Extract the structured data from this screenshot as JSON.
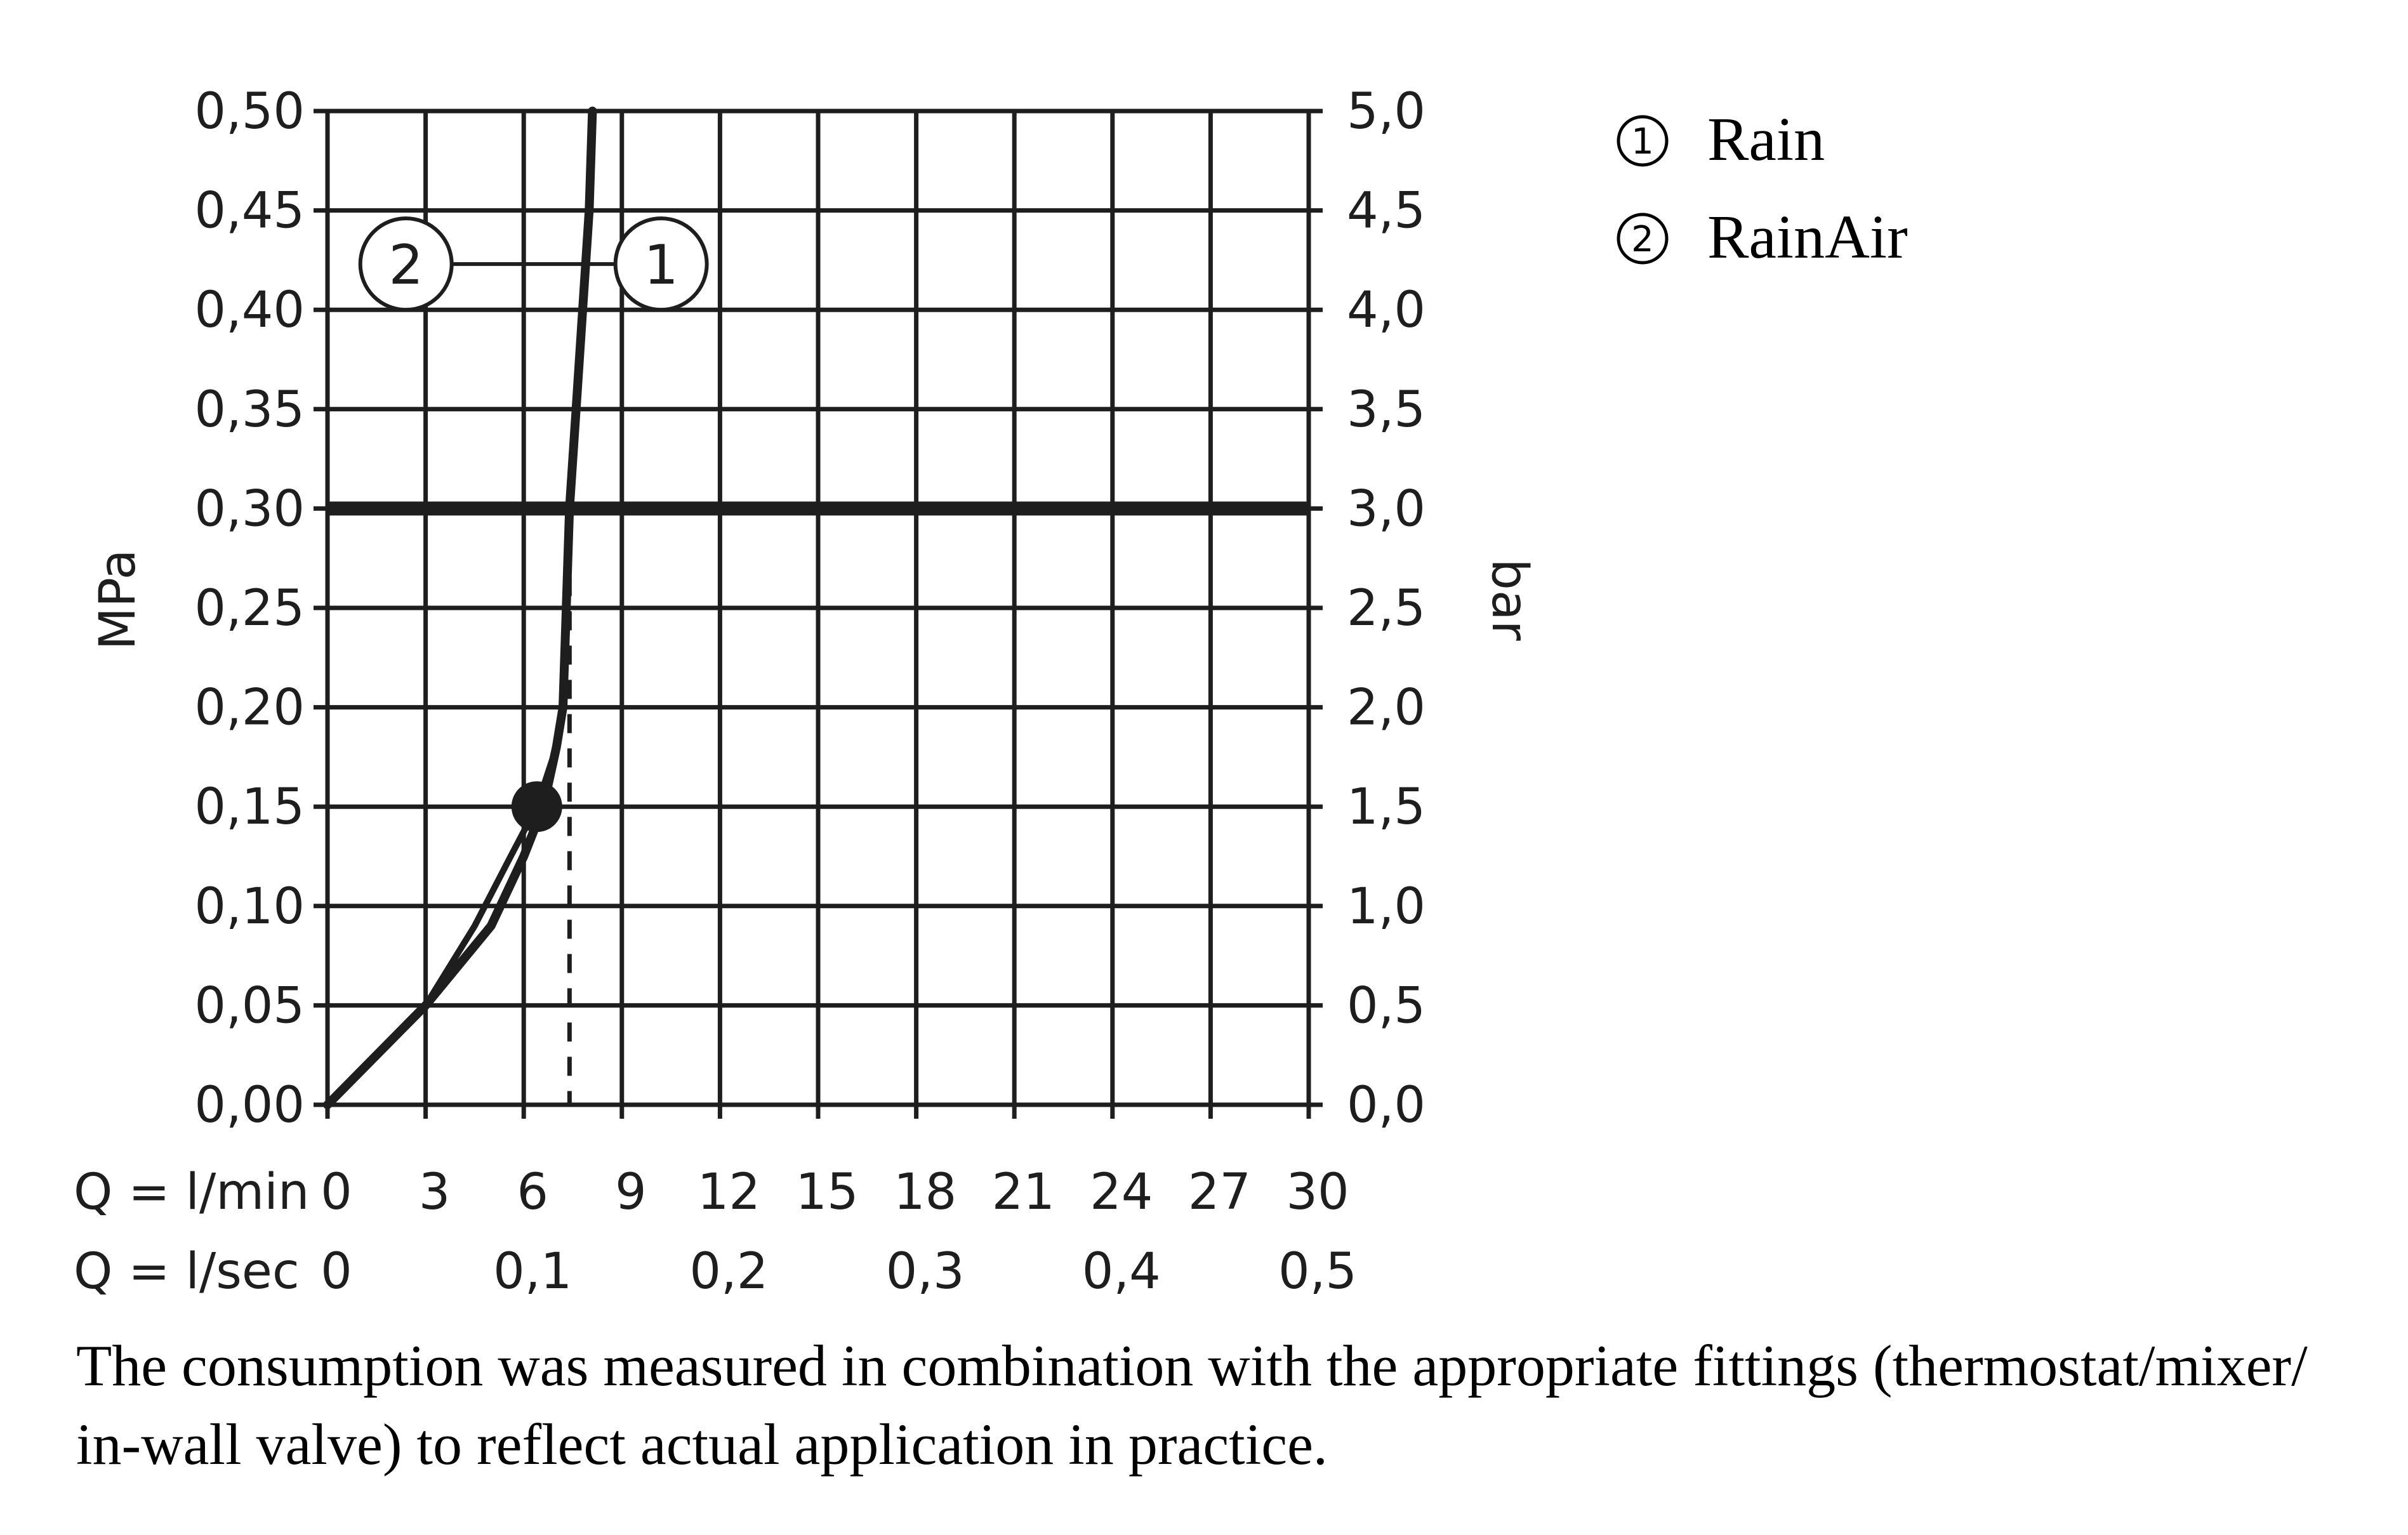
{
  "chart_data": {
    "type": "line",
    "title": "",
    "ylabel_left": "MPa",
    "ylabel_right": "bar",
    "xlabel_rows": [
      {
        "label": "Q = l/min",
        "ticks": [
          "0",
          "3",
          "6",
          "9",
          "12",
          "15",
          "18",
          "21",
          "24",
          "27",
          "30"
        ]
      },
      {
        "label": "Q = l/sec",
        "ticks": [
          "0",
          "0,1",
          "0,2",
          "0,3",
          "0,4",
          "0,5"
        ]
      }
    ],
    "xlim": [
      0,
      30
    ],
    "ylim": [
      0,
      0.5
    ],
    "y_ticks_left": [
      "0,00",
      "0,05",
      "0,10",
      "0,15",
      "0,20",
      "0,25",
      "0,30",
      "0,35",
      "0,40",
      "0,45",
      "0,50"
    ],
    "y_ticks_right": [
      "0,0",
      "0,5",
      "1,0",
      "1,5",
      "2,0",
      "2,5",
      "3,0",
      "3,5",
      "4,0",
      "4,5",
      "5,0"
    ],
    "grid": true,
    "reference_line_y": 0.3,
    "operating_point": {
      "x": 6.4,
      "y": 0.15
    },
    "dashed_line_x": 7.4,
    "series": [
      {
        "name": "Rain",
        "callout": "1",
        "points": [
          [
            0,
            0
          ],
          [
            3,
            0.05
          ],
          [
            5,
            0.09
          ],
          [
            6,
            0.125
          ],
          [
            6.6,
            0.15
          ],
          [
            7,
            0.18
          ],
          [
            7.2,
            0.2
          ],
          [
            7.3,
            0.25
          ],
          [
            7.4,
            0.3
          ],
          [
            7.6,
            0.35
          ],
          [
            7.8,
            0.4
          ],
          [
            8.0,
            0.45
          ],
          [
            8.1,
            0.5
          ]
        ]
      },
      {
        "name": "RainAir",
        "callout": "2",
        "points": [
          [
            0,
            0
          ],
          [
            3,
            0.05
          ],
          [
            4.5,
            0.09
          ],
          [
            5.6,
            0.125
          ],
          [
            6.4,
            0.15
          ],
          [
            7,
            0.18
          ],
          [
            7.2,
            0.2
          ],
          [
            7.3,
            0.25
          ],
          [
            7.4,
            0.3
          ],
          [
            7.6,
            0.35
          ],
          [
            7.8,
            0.4
          ],
          [
            8.0,
            0.45
          ],
          [
            8.1,
            0.5
          ]
        ]
      }
    ]
  },
  "legend": [
    {
      "num": "1",
      "label": "Rain"
    },
    {
      "num": "2",
      "label": "RainAir"
    }
  ],
  "note": {
    "line1": "The consumption was measured in combination with the appropriate fittings (thermostat/mixer/",
    "line2": "in-wall valve) to reflect actual application in practice."
  }
}
